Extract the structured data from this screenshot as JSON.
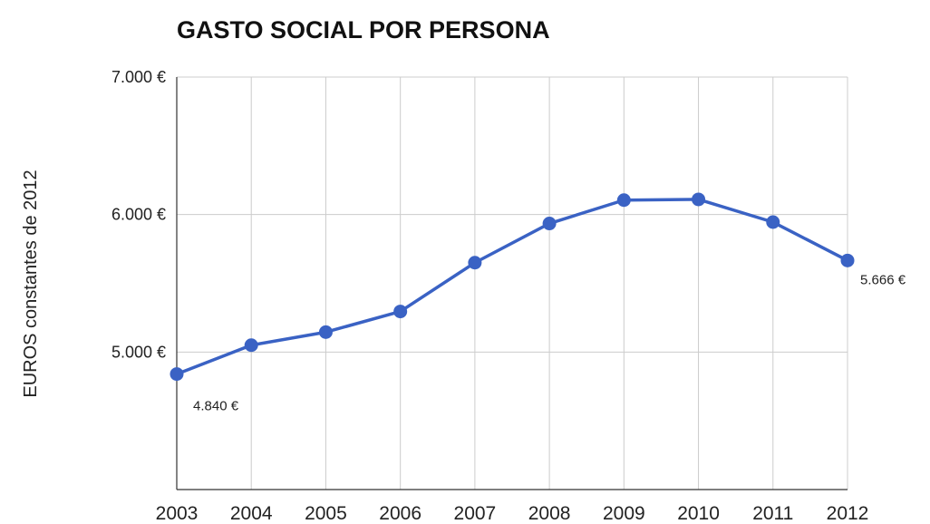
{
  "chart_data": {
    "type": "line",
    "title": "GASTO SOCIAL POR PERSONA",
    "ylabel": "EUROS constantes de 2012",
    "xlabel": "",
    "categories": [
      "2003",
      "2004",
      "2005",
      "2006",
      "2007",
      "2008",
      "2009",
      "2010",
      "2011",
      "2012"
    ],
    "values": [
      4840,
      5050,
      5145,
      5295,
      5650,
      5935,
      6105,
      6110,
      5945,
      5666
    ],
    "ylim": [
      4000,
      7000
    ],
    "y_ticks": [
      {
        "value": 5000,
        "label": "5.000 €"
      },
      {
        "value": 6000,
        "label": "6.000 €"
      },
      {
        "value": 7000,
        "label": "7.000 €"
      }
    ],
    "data_labels": [
      {
        "index": 0,
        "text": "4.840 €"
      },
      {
        "index": 9,
        "text": "5.666 €"
      }
    ],
    "grid": true,
    "legend": "none",
    "colors": {
      "line": "#3a62c4",
      "grid": "#cccccc",
      "axis": "#333333"
    }
  }
}
